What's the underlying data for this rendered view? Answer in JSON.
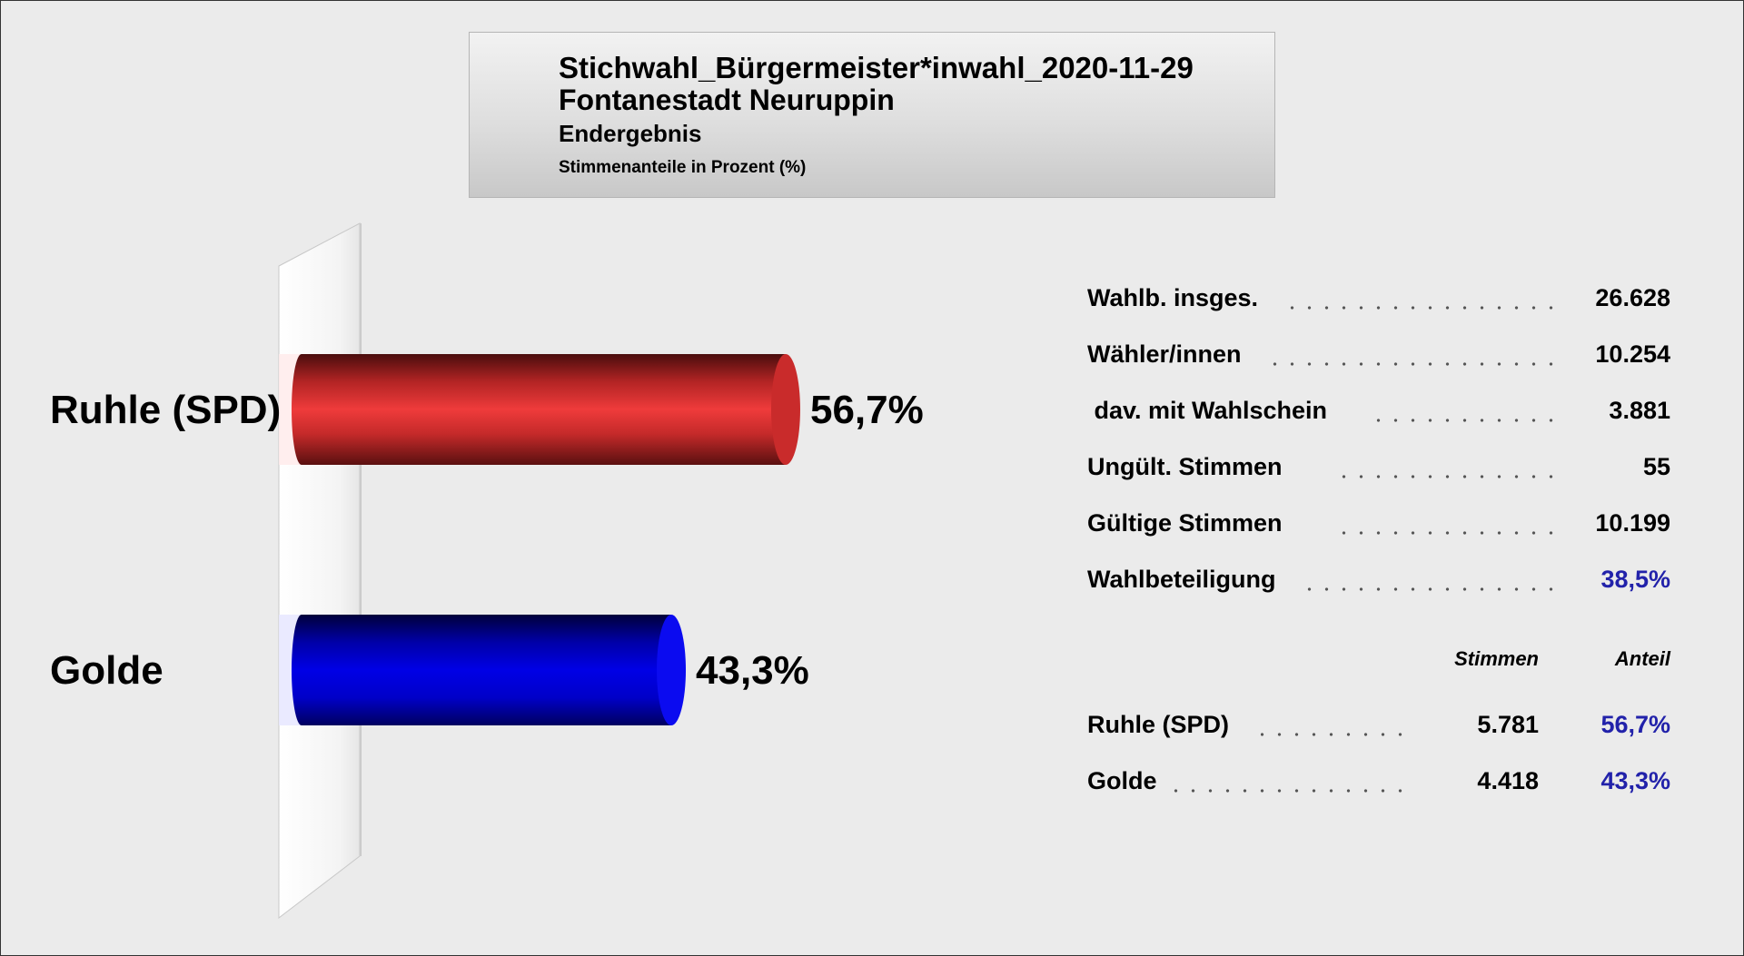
{
  "header": {
    "title": "Stichwahl_Bürgermeister*inwahl_2020-11-29",
    "subtitle": "Fontanestadt Neuruppin",
    "status": "Endergebnis",
    "unit_note": "Stimmenanteile in Prozent (%)"
  },
  "chart_data": {
    "type": "bar",
    "orientation": "horizontal",
    "categories": [
      "Ruhle (SPD)",
      "Golde"
    ],
    "values": [
      56.7,
      43.3
    ],
    "value_labels": [
      "56,7%",
      "43,3%"
    ],
    "colors": [
      "#e83535",
      "#0000ee"
    ],
    "unit": "%",
    "grid": false,
    "legend": "none"
  },
  "stats": {
    "rows": [
      {
        "label": "Wahlb. insges.",
        "value": "26.628"
      },
      {
        "label": "Wähler/innen",
        "value": "10.254"
      },
      {
        "label": " dav. mit Wahlschein",
        "value": "3.881"
      },
      {
        "label": "Ungült. Stimmen",
        "value": "55"
      },
      {
        "label": "Gültige Stimmen",
        "value": "10.199"
      },
      {
        "label": "Wahlbeteiligung",
        "value": "38,5%"
      }
    ],
    "col_votes": "Stimmen",
    "col_share": "Anteil",
    "results": [
      {
        "label": "Ruhle (SPD)",
        "votes": "5.781",
        "share": "56,7%"
      },
      {
        "label": "Golde",
        "votes": "4.418",
        "share": "43,3%"
      }
    ],
    "accent_color": "#2222aa"
  }
}
